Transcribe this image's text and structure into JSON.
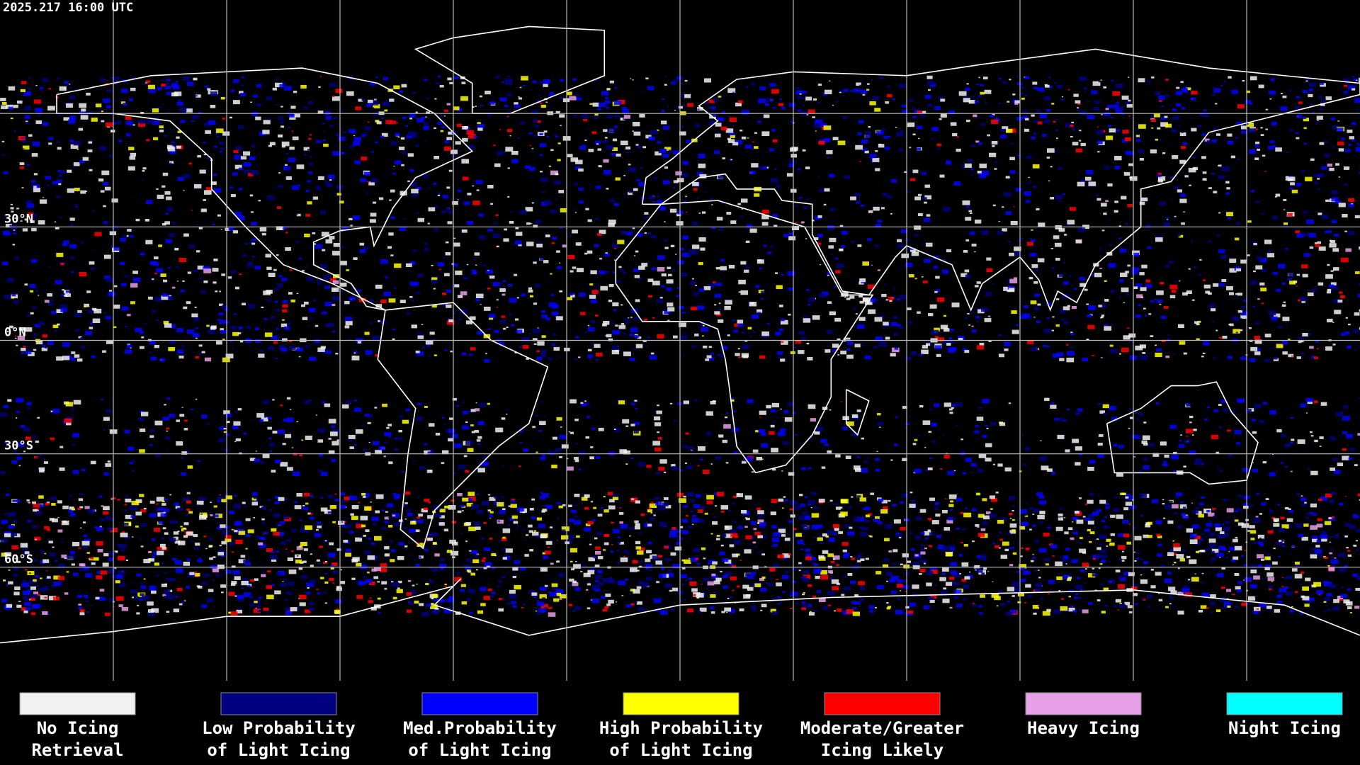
{
  "timestamp": "2025.217 16:00 UTC",
  "lat_labels": [
    {
      "lat": 30,
      "label": "30°N"
    },
    {
      "lat": 0,
      "label": "0°N"
    },
    {
      "lat": -30,
      "label": "30°S"
    },
    {
      "lat": -60,
      "label": "60°S"
    }
  ],
  "legend": [
    {
      "lines": [
        "No Icing",
        "Retrieval"
      ],
      "color": "#f2f2f2"
    },
    {
      "lines": [
        "Low Probability",
        "of Light Icing"
      ],
      "color": "#000080"
    },
    {
      "lines": [
        "Med.Probability",
        "of Light Icing"
      ],
      "color": "#0000ff"
    },
    {
      "lines": [
        "High Probability",
        "of Light Icing"
      ],
      "color": "#ffff00"
    },
    {
      "lines": [
        "Moderate/Greater",
        "Icing Likely"
      ],
      "color": "#ff0000"
    },
    {
      "lines": [
        "Heavy Icing"
      ],
      "color": "#e8a0e8"
    },
    {
      "lines": [
        "Night Icing"
      ],
      "color": "#00ffff"
    }
  ]
}
